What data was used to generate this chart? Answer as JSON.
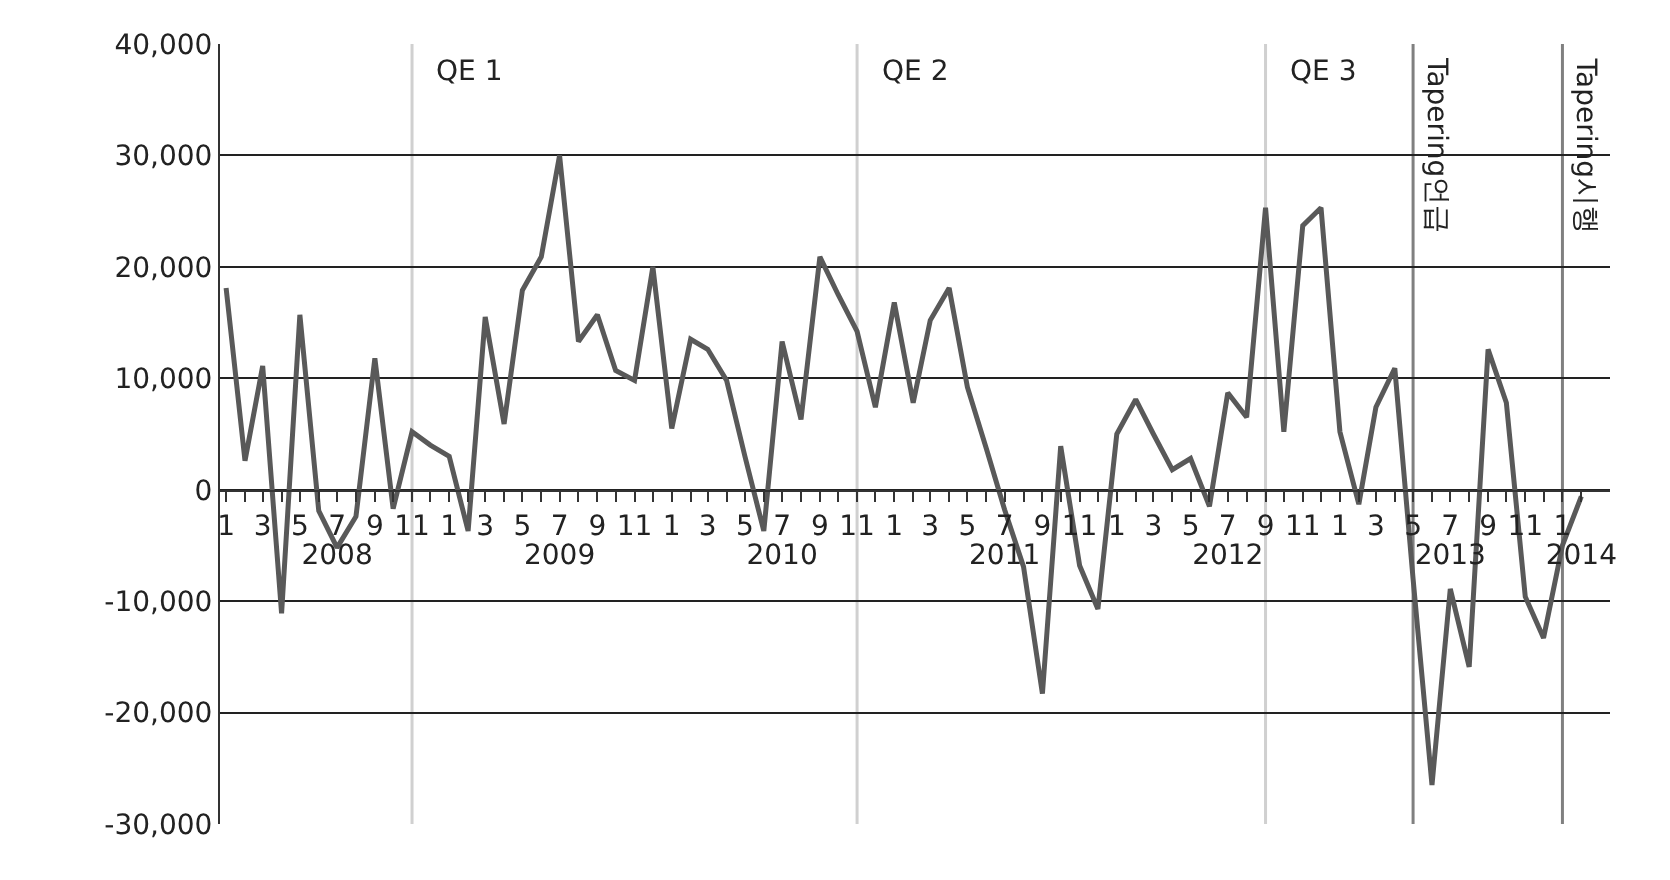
{
  "chart_data": {
    "type": "line",
    "x": [
      "2008-01",
      "2008-02",
      "2008-03",
      "2008-04",
      "2008-05",
      "2008-06",
      "2008-07",
      "2008-08",
      "2008-09",
      "2008-10",
      "2008-11",
      "2008-12",
      "2009-01",
      "2009-02",
      "2009-03",
      "2009-04",
      "2009-05",
      "2009-06",
      "2009-07",
      "2009-08",
      "2009-09",
      "2009-10",
      "2009-11",
      "2009-12",
      "2010-01",
      "2010-02",
      "2010-03",
      "2010-04",
      "2010-05",
      "2010-06",
      "2010-07",
      "2010-08",
      "2010-09",
      "2010-10",
      "2010-11",
      "2010-12",
      "2011-01",
      "2011-02",
      "2011-03",
      "2011-04",
      "2011-05",
      "2011-06",
      "2011-07",
      "2011-08",
      "2011-09",
      "2011-10",
      "2011-11",
      "2011-12",
      "2012-01",
      "2012-02",
      "2012-03",
      "2012-04",
      "2012-05",
      "2012-06",
      "2012-07",
      "2012-08",
      "2012-09",
      "2012-10",
      "2012-11",
      "2012-12",
      "2013-01",
      "2013-02",
      "2013-03",
      "2013-04",
      "2013-05",
      "2013-06",
      "2013-07",
      "2013-08",
      "2013-09",
      "2013-10",
      "2013-11",
      "2013-12",
      "2014-01",
      "2014-02"
    ],
    "series": [
      {
        "color": "#595959",
        "values": [
          18100,
          2600,
          11100,
          -11100,
          15700,
          -1900,
          -5200,
          -2400,
          11800,
          -1700,
          5200,
          4000,
          3000,
          -3700,
          15500,
          5900,
          17900,
          20900,
          30000,
          13300,
          15700,
          10700,
          9800,
          20000,
          5500,
          13500,
          12600,
          9800,
          3000,
          -3700,
          13300,
          6300,
          20900,
          17500,
          14200,
          7400,
          16800,
          7800,
          15200,
          18100,
          9200,
          3700,
          -1800,
          -6900,
          -18300,
          3900,
          -6800,
          -10700,
          5000,
          8100,
          5000,
          1800,
          2800,
          -1500,
          8700,
          6500,
          25300,
          5200,
          23700,
          25300,
          5200,
          -1300,
          7400,
          10900,
          -8000,
          -26500,
          -8900,
          -15900,
          12600,
          7800,
          -9600,
          -13300,
          -5000,
          -600
        ]
      }
    ],
    "ylim": [
      -30000,
      40000
    ],
    "yticks": [
      {
        "value": -30000,
        "label": "-30,000"
      },
      {
        "value": -20000,
        "label": "-20,000"
      },
      {
        "value": -10000,
        "label": "-10,000"
      },
      {
        "value": 0,
        "label": "0"
      },
      {
        "value": 10000,
        "label": "10,000"
      },
      {
        "value": 20000,
        "label": "20,000"
      },
      {
        "value": 30000,
        "label": "30,000"
      },
      {
        "value": 40000,
        "label": "40,000"
      }
    ],
    "xlim": [
      "2007-12-22",
      "2014-03-20"
    ],
    "xticks": [
      {
        "value": "2008-01",
        "label": "1"
      },
      {
        "value": "2008-02",
        "label": null
      },
      {
        "value": "2008-03",
        "label": "3"
      },
      {
        "value": "2008-04",
        "label": null
      },
      {
        "value": "2008-05",
        "label": "5"
      },
      {
        "value": "2008-06",
        "label": null
      },
      {
        "value": "2008-07",
        "label": "7"
      },
      {
        "value": "2008-08",
        "label": null
      },
      {
        "value": "2008-09",
        "label": "9"
      },
      {
        "value": "2008-10",
        "label": null
      },
      {
        "value": "2008-11",
        "label": "11"
      },
      {
        "value": "2008-12",
        "label": null
      },
      {
        "value": "2009-01",
        "label": "1"
      },
      {
        "value": "2009-02",
        "label": null
      },
      {
        "value": "2009-03",
        "label": "3"
      },
      {
        "value": "2009-04",
        "label": null
      },
      {
        "value": "2009-05",
        "label": "5"
      },
      {
        "value": "2009-06",
        "label": null
      },
      {
        "value": "2009-07",
        "label": "7"
      },
      {
        "value": "2009-08",
        "label": null
      },
      {
        "value": "2009-09",
        "label": "9"
      },
      {
        "value": "2009-10",
        "label": null
      },
      {
        "value": "2009-11",
        "label": "11"
      },
      {
        "value": "2009-12",
        "label": null
      },
      {
        "value": "2010-01",
        "label": "1"
      },
      {
        "value": "2010-02",
        "label": null
      },
      {
        "value": "2010-03",
        "label": "3"
      },
      {
        "value": "2010-04",
        "label": null
      },
      {
        "value": "2010-05",
        "label": "5"
      },
      {
        "value": "2010-06",
        "label": null
      },
      {
        "value": "2010-07",
        "label": "7"
      },
      {
        "value": "2010-08",
        "label": null
      },
      {
        "value": "2010-09",
        "label": "9"
      },
      {
        "value": "2010-10",
        "label": null
      },
      {
        "value": "2010-11",
        "label": "11"
      },
      {
        "value": "2010-12",
        "label": null
      },
      {
        "value": "2011-01",
        "label": "1"
      },
      {
        "value": "2011-02",
        "label": null
      },
      {
        "value": "2011-03",
        "label": "3"
      },
      {
        "value": "2011-04",
        "label": null
      },
      {
        "value": "2011-05",
        "label": "5"
      },
      {
        "value": "2011-06",
        "label": null
      },
      {
        "value": "2011-07",
        "label": "7"
      },
      {
        "value": "2011-08",
        "label": null
      },
      {
        "value": "2011-09",
        "label": "9"
      },
      {
        "value": "2011-10",
        "label": null
      },
      {
        "value": "2011-11",
        "label": "11"
      },
      {
        "value": "2011-12",
        "label": null
      },
      {
        "value": "2012-01",
        "label": "1"
      },
      {
        "value": "2012-02",
        "label": null
      },
      {
        "value": "2012-03",
        "label": "3"
      },
      {
        "value": "2012-04",
        "label": null
      },
      {
        "value": "2012-05",
        "label": "5"
      },
      {
        "value": "2012-06",
        "label": null
      },
      {
        "value": "2012-07",
        "label": "7"
      },
      {
        "value": "2012-08",
        "label": null
      },
      {
        "value": "2012-09",
        "label": "9"
      },
      {
        "value": "2012-10",
        "label": null
      },
      {
        "value": "2012-11",
        "label": "11"
      },
      {
        "value": "2012-12",
        "label": null
      },
      {
        "value": "2013-01",
        "label": "1"
      },
      {
        "value": "2013-02",
        "label": null
      },
      {
        "value": "2013-03",
        "label": "3"
      },
      {
        "value": "2013-04",
        "label": null
      },
      {
        "value": "2013-05",
        "label": "5"
      },
      {
        "value": "2013-06",
        "label": null
      },
      {
        "value": "2013-07",
        "label": "7"
      },
      {
        "value": "2013-08",
        "label": null
      },
      {
        "value": "2013-09",
        "label": "9"
      },
      {
        "value": "2013-10",
        "label": null
      },
      {
        "value": "2013-11",
        "label": "11"
      },
      {
        "value": "2013-12",
        "label": null
      },
      {
        "value": "2014-01",
        "label": "1"
      },
      {
        "value": "2014-02",
        "label": null
      }
    ],
    "x2lim": [
      "2007-12-22",
      "2014-03-20"
    ],
    "x2ticks": [
      {
        "value": "2008-07-01",
        "label": "2008"
      },
      {
        "value": "2009-07-01",
        "label": "2009"
      },
      {
        "value": "2010-07-01",
        "label": "2010"
      },
      {
        "value": "2011-07-01",
        "label": "2011"
      },
      {
        "value": "2012-07-01",
        "label": "2012"
      },
      {
        "value": "2013-07-01",
        "label": "2013"
      },
      {
        "value": "2014-02-01",
        "label": "2014"
      }
    ],
    "ref_lines": [
      {
        "axis": "x",
        "value": "2008-11",
        "label": "QE 1",
        "color": "#d0d0d0"
      },
      {
        "axis": "x",
        "value": "2010-11",
        "label": "QE 2",
        "color": "#d0d0d0"
      },
      {
        "axis": "x",
        "value": "2012-09",
        "label": "QE 3",
        "color": "#d0d0d0"
      },
      {
        "axis": "x",
        "value": "2013-05",
        "label": "Tapering언급",
        "color": "#808080"
      },
      {
        "axis": "x",
        "value": "2014-01",
        "label": "Tapering시행",
        "color": "#808080"
      }
    ],
    "grid": "y",
    "marker": "none",
    "line_style": "solid"
  }
}
